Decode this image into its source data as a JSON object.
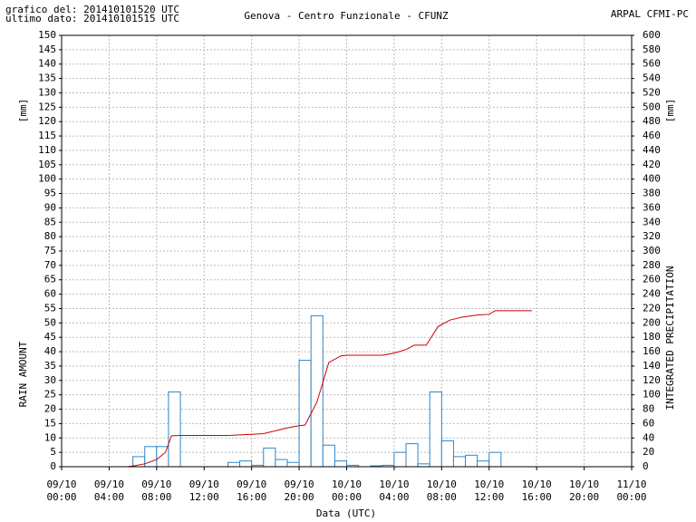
{
  "chart_data": {
    "type": "histogram_line",
    "header_left": [
      "grafico del: 201410101520 UTC",
      "ultimo dato: 201410101515 UTC"
    ],
    "title": "Genova - Centro Funzionale - CFUNZ",
    "header_right": "ARPAL CFMI-PC",
    "xlabel": "Data (UTC)",
    "ylabel": "RAIN AMOUNT",
    "yunit": "[mm]",
    "y2label": "INTEGRATED PRECIPITATION",
    "y2unit": "[mm]",
    "grid": true,
    "xlim": [
      0,
      48
    ],
    "xticks": [
      {
        "value": 0,
        "label": "09/10 00:00"
      },
      {
        "value": 4,
        "label": "09/10 04:00"
      },
      {
        "value": 8,
        "label": "09/10 08:00"
      },
      {
        "value": 12,
        "label": "09/10 12:00"
      },
      {
        "value": 16,
        "label": "09/10 16:00"
      },
      {
        "value": 20,
        "label": "09/10 20:00"
      },
      {
        "value": 24,
        "label": "10/10 00:00"
      },
      {
        "value": 28,
        "label": "10/10 04:00"
      },
      {
        "value": 32,
        "label": "10/10 08:00"
      },
      {
        "value": 36,
        "label": "10/10 12:00"
      },
      {
        "value": 40,
        "label": "10/10 16:00"
      },
      {
        "value": 44,
        "label": "10/10 20:00"
      },
      {
        "value": 48,
        "label": "11/10 00:00"
      }
    ],
    "ylim": [
      0,
      150
    ],
    "yticks": [
      0,
      5,
      10,
      15,
      20,
      25,
      30,
      35,
      40,
      45,
      50,
      55,
      60,
      65,
      70,
      75,
      80,
      85,
      90,
      95,
      100,
      105,
      110,
      115,
      120,
      125,
      130,
      135,
      140,
      145,
      150
    ],
    "y2lim": [
      0,
      600
    ],
    "y2ticks": [
      0,
      20,
      40,
      60,
      80,
      100,
      120,
      140,
      160,
      180,
      200,
      220,
      240,
      260,
      280,
      300,
      320,
      340,
      360,
      380,
      400,
      420,
      440,
      460,
      480,
      500,
      520,
      540,
      560,
      580,
      600
    ],
    "bars": {
      "color": "#2f86c8",
      "bins": [
        0,
        1,
        2,
        3,
        4,
        5,
        6,
        7,
        8,
        9,
        10,
        11,
        12,
        13,
        14,
        15,
        16,
        17,
        18,
        19,
        20,
        21,
        22,
        23,
        24,
        25,
        26,
        27,
        28,
        29,
        30,
        31,
        32,
        33,
        34,
        35,
        36,
        37,
        38,
        39
      ],
      "values": [
        0,
        0,
        0,
        0,
        0,
        0,
        3.5,
        7,
        7,
        26,
        0,
        0,
        0,
        0,
        1.5,
        2,
        0.5,
        6.5,
        2.5,
        1.5,
        37,
        52.5,
        7.5,
        2,
        0.5,
        0,
        0.3,
        0.5,
        5,
        8,
        1,
        26,
        9,
        3.5,
        4,
        2,
        5,
        0,
        0
      ]
    },
    "line": {
      "color": "#cc0000",
      "axis": "y2",
      "x": [
        0,
        5.5,
        6,
        7,
        8,
        8.75,
        9.25,
        10,
        14,
        16,
        17,
        18,
        19,
        20,
        20.5,
        21.5,
        22.5,
        23.5,
        24,
        27,
        28,
        29,
        29.7,
        30.7,
        31.7,
        32.7,
        33.7,
        35,
        36,
        36.5,
        39.6
      ],
      "values": [
        0,
        0,
        1,
        4,
        10,
        20,
        43,
        43.5,
        43.5,
        45,
        46,
        50,
        54,
        57,
        58,
        90,
        145,
        154,
        155,
        155,
        158,
        163,
        169,
        169,
        195,
        204,
        208,
        211,
        212,
        217,
        217
      ]
    }
  }
}
